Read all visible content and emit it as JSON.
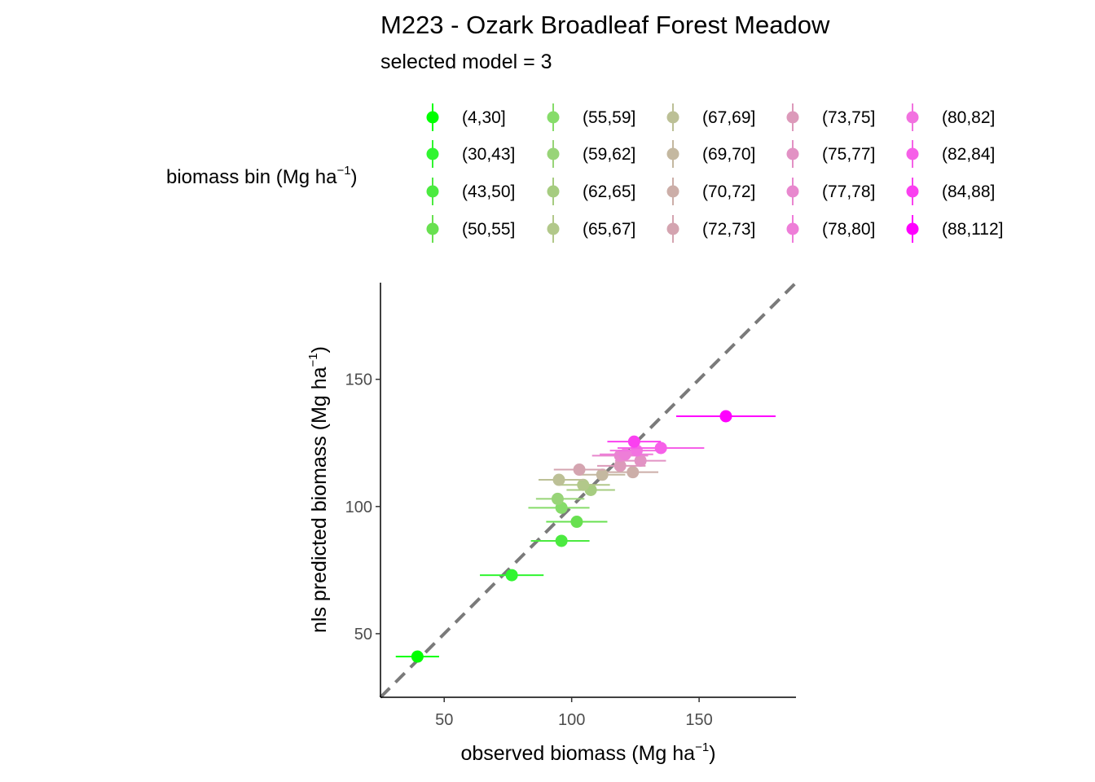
{
  "chart_data": {
    "type": "scatter",
    "title": "M223 - Ozark Broadleaf Forest Meadow",
    "subtitle": "selected model = 3",
    "xlabel": "observed biomass (Mg ha",
    "xlabel_sup": "−1",
    "xlabel_close": ")",
    "ylabel": "nls predicted biomass (Mg ha",
    "ylabel_sup": "−1",
    "ylabel_close": ")",
    "xlim": [
      25,
      188
    ],
    "ylim": [
      25,
      188
    ],
    "xticks": [
      50,
      100,
      150
    ],
    "yticks": [
      50,
      100,
      150
    ],
    "reference_line": "1:1 dashed",
    "legend": {
      "title": "biomass bin (Mg ha",
      "title_sup": "−1",
      "title_close": ")",
      "position": "top",
      "entries": [
        {
          "label": "(4,30]",
          "color": "#00FF00"
        },
        {
          "label": "(30,43]",
          "color": "#30F530"
        },
        {
          "label": "(43,50]",
          "color": "#4BEA40"
        },
        {
          "label": "(50,55]",
          "color": "#68E050"
        },
        {
          "label": "(55,59]",
          "color": "#86DC6A"
        },
        {
          "label": "(59,62]",
          "color": "#98D478"
        },
        {
          "label": "(62,65]",
          "color": "#A6CC80"
        },
        {
          "label": "(65,67]",
          "color": "#B2C88A"
        },
        {
          "label": "(67,69]",
          "color": "#BCC096"
        },
        {
          "label": "(69,70]",
          "color": "#C4B8A0"
        },
        {
          "label": "(70,72]",
          "color": "#CCAEA8"
        },
        {
          "label": "(72,73]",
          "color": "#D4A4B0"
        },
        {
          "label": "(73,75]",
          "color": "#DC9ABA"
        },
        {
          "label": "(75,77]",
          "color": "#E292C4"
        },
        {
          "label": "(77,78]",
          "color": "#E888CE"
        },
        {
          "label": "(78,80]",
          "color": "#EE7ED8"
        },
        {
          "label": "(80,82]",
          "color": "#F272E0"
        },
        {
          "label": "(82,84]",
          "color": "#F660E8"
        },
        {
          "label": "(84,88]",
          "color": "#FA40F0"
        },
        {
          "label": "(88,112]",
          "color": "#FF00FF"
        }
      ]
    },
    "series": [
      {
        "name": "(4,30]",
        "x": 39.5,
        "y": 41,
        "xmin": 31,
        "xmax": 48
      },
      {
        "name": "(30,43]",
        "x": 76.5,
        "y": 73,
        "xmin": 64,
        "xmax": 89
      },
      {
        "name": "(43,50]",
        "x": 96,
        "y": 86.5,
        "xmin": 84,
        "xmax": 107
      },
      {
        "name": "(50,55]",
        "x": 102,
        "y": 94,
        "xmin": 90,
        "xmax": 114
      },
      {
        "name": "(55,59]",
        "x": 96,
        "y": 99.5,
        "xmin": 83,
        "xmax": 107
      },
      {
        "name": "(59,62]",
        "x": 94.5,
        "y": 103,
        "xmin": 86,
        "xmax": 105
      },
      {
        "name": "(62,65]",
        "x": 107.5,
        "y": 106.5,
        "xmin": 98,
        "xmax": 117
      },
      {
        "name": "(65,67]",
        "x": 104.5,
        "y": 108.5,
        "xmin": 95,
        "xmax": 115
      },
      {
        "name": "(67,69]",
        "x": 95,
        "y": 110.5,
        "xmin": 87,
        "xmax": 105
      },
      {
        "name": "(69,70]",
        "x": 112,
        "y": 112.5,
        "xmin": 103,
        "xmax": 121
      },
      {
        "name": "(70,72]",
        "x": 124,
        "y": 113.5,
        "xmin": 114,
        "xmax": 134
      },
      {
        "name": "(72,73]",
        "x": 103,
        "y": 114.5,
        "xmin": 93,
        "xmax": 113
      },
      {
        "name": "(73,75]",
        "x": 119,
        "y": 116,
        "xmin": 110,
        "xmax": 129
      },
      {
        "name": "(75,77]",
        "x": 127,
        "y": 118,
        "xmin": 117,
        "xmax": 137
      },
      {
        "name": "(77,78]",
        "x": 119,
        "y": 120,
        "xmin": 108,
        "xmax": 130
      },
      {
        "name": "(78,80]",
        "x": 121,
        "y": 120.5,
        "xmin": 111,
        "xmax": 132
      },
      {
        "name": "(80,82]",
        "x": 125.5,
        "y": 122,
        "xmin": 115,
        "xmax": 136
      },
      {
        "name": "(82,84]",
        "x": 135,
        "y": 123,
        "xmin": 118,
        "xmax": 152
      },
      {
        "name": "(84,88]",
        "x": 124.5,
        "y": 125.5,
        "xmin": 114,
        "xmax": 135
      },
      {
        "name": "(88,112]",
        "x": 160.5,
        "y": 135.5,
        "xmin": 141,
        "xmax": 180
      }
    ]
  }
}
